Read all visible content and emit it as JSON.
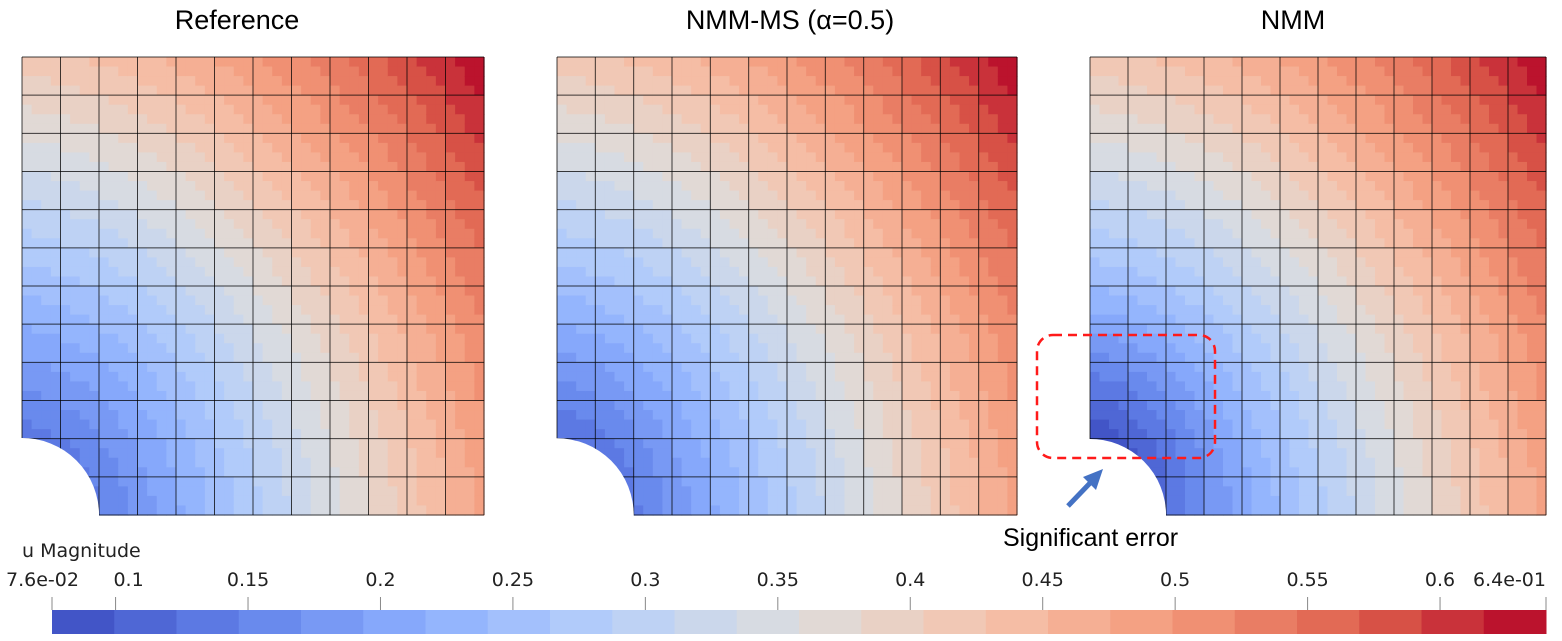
{
  "chart_data": {
    "type": "heatmap",
    "panels": [
      {
        "title": "Reference",
        "variant": "reference"
      },
      {
        "title": "NMM-MS (α=0.5)",
        "variant": "nmm-ms"
      },
      {
        "title": "NMM",
        "variant": "nmm"
      }
    ],
    "mesh": {
      "cells_x": 12,
      "cells_y": 12,
      "hole": "quarter-circle bottom-left"
    },
    "colorbar": {
      "label": "u Magnitude",
      "range": [
        0.076,
        0.64
      ],
      "levels": 24,
      "colormap": "cool-to-warm",
      "min_label": "7.6e-02",
      "max_label": "6.4e-01",
      "ticks": [
        0.1,
        0.15,
        0.2,
        0.25,
        0.3,
        0.35,
        0.4,
        0.45,
        0.5,
        0.55,
        0.6
      ],
      "tick_labels": [
        "0.1",
        "0.15",
        "0.2",
        "0.25",
        "0.3",
        "0.35",
        "0.4",
        "0.45",
        "0.5",
        "0.55",
        "0.6"
      ]
    },
    "annotation": {
      "text": "Significant error",
      "panel": "NMM",
      "highlight_color": "#ff1a1a",
      "arrow_color": "#4472c4"
    }
  },
  "colors": {
    "low": "#3b4cc0",
    "mid": "#dddddd",
    "high": "#b40426",
    "grid": "#000000"
  }
}
